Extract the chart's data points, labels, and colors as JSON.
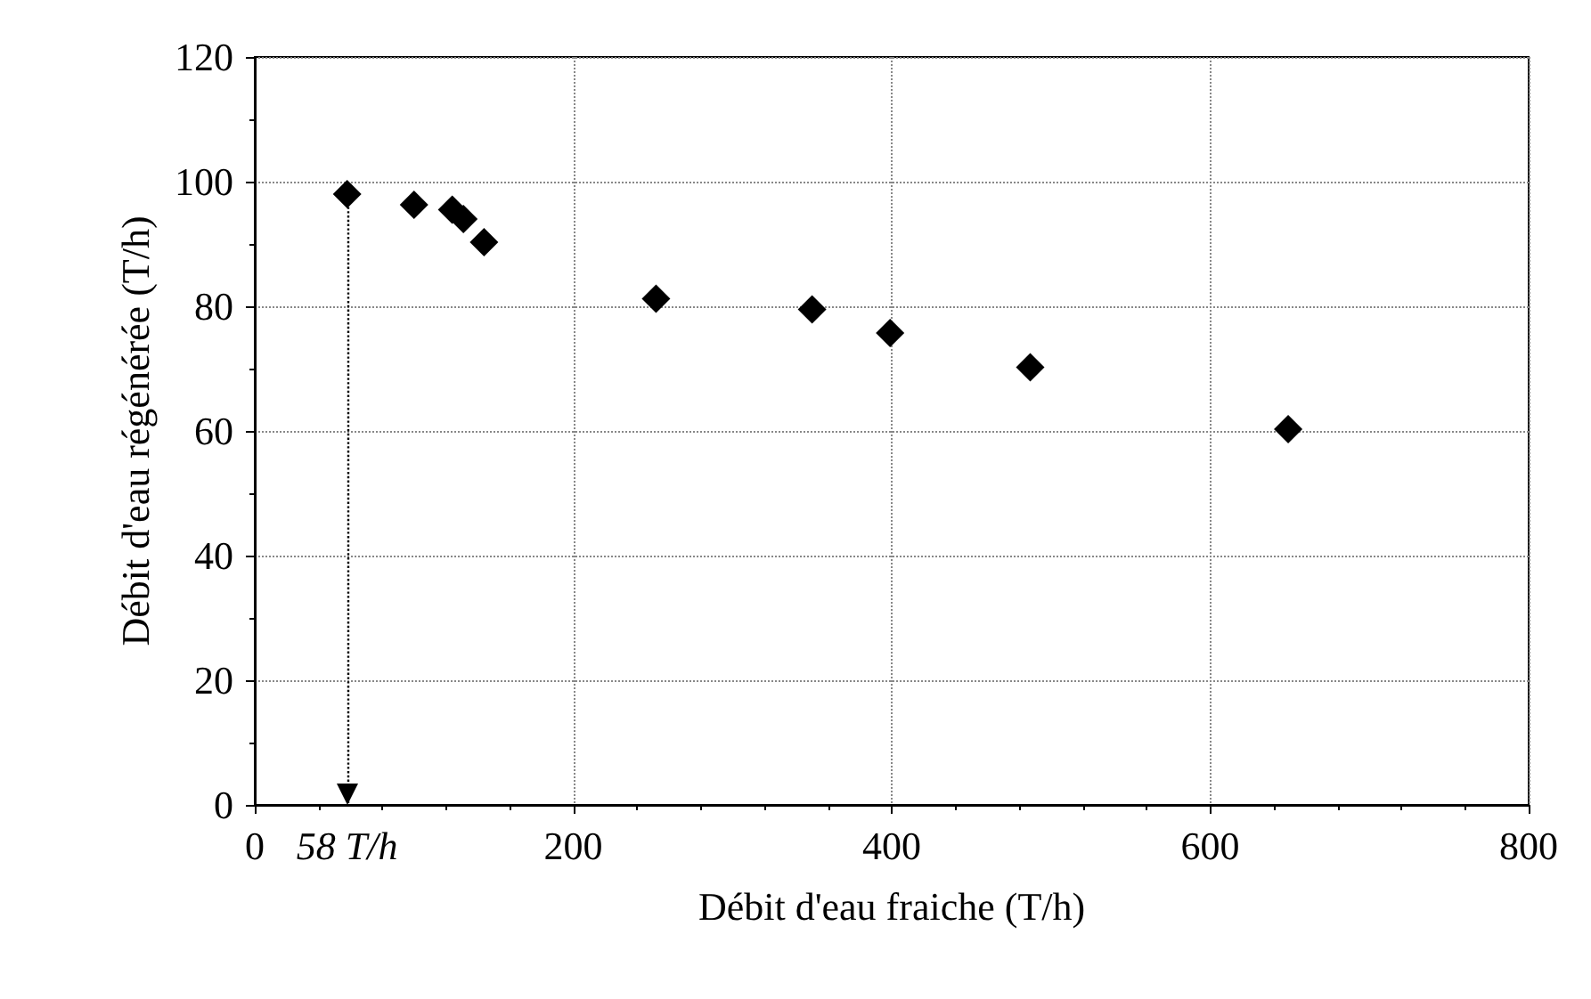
{
  "chart_data": {
    "type": "scatter",
    "xlabel": "Débit d'eau fraiche (T/h)",
    "ylabel": "Débit d'eau régénérée (T/h)",
    "x": [
      58,
      100,
      124,
      131,
      144,
      252,
      350,
      399,
      487,
      649
    ],
    "values": [
      98,
      96.3,
      95.5,
      94,
      90.3,
      81.2,
      79.5,
      75.7,
      70.2,
      60.3
    ],
    "color": "#000000",
    "marker": "diamond",
    "grid": true,
    "xlim": [
      0,
      800
    ],
    "xticks": [
      0,
      {
        "value": 58,
        "label": "58 T/h"
      },
      200,
      400,
      600,
      800
    ],
    "ylim": [
      0,
      120
    ],
    "yticks": [
      0,
      20,
      40,
      60,
      80,
      100,
      120
    ],
    "ref_lines": [
      {
        "axis": "x",
        "value": 58,
        "line_style": "dotted",
        "color": "#000000"
      }
    ]
  }
}
